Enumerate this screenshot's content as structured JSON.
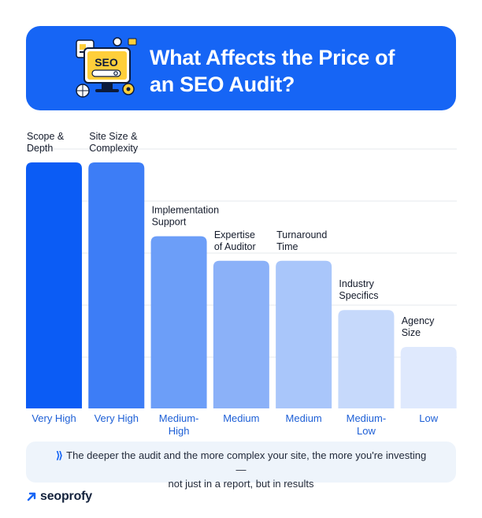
{
  "header": {
    "title_line1": "What Affects the Price of",
    "title_line2": "an SEO Audit?",
    "logo_text": "SEO"
  },
  "chart_data": {
    "type": "bar",
    "title": "What Affects the Price of an SEO Audit?",
    "xlabel": "",
    "ylabel": "",
    "categories": [
      [
        "Scope &",
        "Depth"
      ],
      [
        "Site Size &",
        "Complexity"
      ],
      [
        "Implementation",
        "Support"
      ],
      [
        "Expertise",
        "of Auditor"
      ],
      [
        "Turnaround",
        "Time"
      ],
      [
        "Industry",
        "Specifics"
      ],
      [
        "Agency",
        "Size"
      ]
    ],
    "value_labels": [
      [
        "Very High"
      ],
      [
        "Very High"
      ],
      [
        "Medium-",
        "High"
      ],
      [
        "Medium"
      ],
      [
        "Medium"
      ],
      [
        "Medium-",
        "Low"
      ],
      [
        "Low"
      ]
    ],
    "values": [
      5,
      5,
      3.5,
      3,
      3,
      2,
      1.25
    ],
    "ylim": [
      0,
      5
    ],
    "grid": true,
    "colors": [
      "#0b5cf5",
      "#3d7df6",
      "#6c9ef8",
      "#8bb1f8",
      "#a9c6fa",
      "#c6d9fb",
      "#dfe9fd"
    ],
    "label_color": "#1d5fd6"
  },
  "footer": {
    "note_line1": "The deeper the audit and the more complex your site, the more you're investing —",
    "note_line2": "not just in a report, but in results"
  },
  "brand": {
    "name": "seoprofy",
    "accent": "#1665f5"
  }
}
